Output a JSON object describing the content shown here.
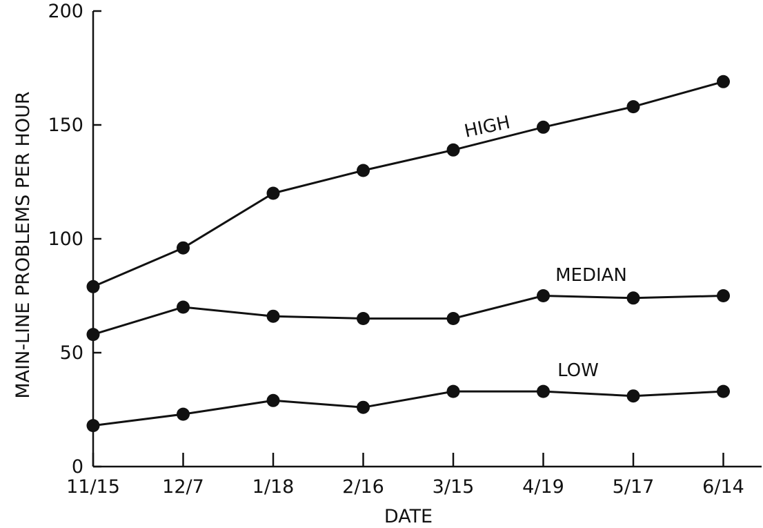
{
  "chart_data": {
    "type": "line",
    "title": "",
    "xlabel": "DATE",
    "ylabel": "MAIN-LINE PROBLEMS PER HOUR",
    "categories": [
      "11/15",
      "12/7",
      "1/18",
      "2/16",
      "3/15",
      "4/19",
      "5/17",
      "6/14"
    ],
    "yticks": [
      0,
      50,
      100,
      150,
      200
    ],
    "ylim": [
      0,
      200
    ],
    "grid": false,
    "legend": "none",
    "series": [
      {
        "name": "HIGH",
        "values": [
          79,
          96,
          120,
          130,
          139,
          149,
          158,
          169
        ]
      },
      {
        "name": "MEDIAN",
        "values": [
          58,
          70,
          66,
          65,
          65,
          75,
          74,
          75
        ]
      },
      {
        "name": "LOW",
        "values": [
          18,
          23,
          29,
          26,
          33,
          33,
          31,
          33
        ]
      }
    ],
    "colors": {
      "ink": "#111111",
      "background": "#ffffff"
    }
  }
}
